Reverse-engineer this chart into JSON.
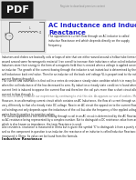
{
  "title": "AC Inductance and Inductive\nReactance",
  "pdf_label": "PDF",
  "bg_color": "#ffffff",
  "header_bg": "#d8d8d8",
  "pdf_box_color": "#1a1a1a",
  "pdf_text_color": "#ffffff",
  "title_color": "#2222cc",
  "body_text_color": "#222222",
  "small_text_color": "#666666",
  "header_line_color": "#bbbbbb",
  "circuit_bg": "#e8e8e8",
  "page_label": "Register to download premium content",
  "subtitle_text": "The opposition to current flow through an AC inductor is called\ninductive Reactance and which depends directly on the supply\nfrequency.",
  "body_paragraphs": [
    "Inductors and chokes are basically coils or loops of wire that are either wound around a hollow tube former (air cored) or wound around some ferromagnetic material (iron cored) to increase their inductance value called inductance.",
    "Inductors store their energy in the form of a magnetic field that is created when a voltage is applied across the terminals of an inductor. The growth of the current flowing through the inductor is not instant but is determined by the inductors own self-inductance back emf value. Then for an inductor coil the back emf voltage VL is proportional to the rate of change of the current flowing through it.",
    "The current and inductance is that coil in a series dc resistance steady state condition which is in many live line converters when the coil inductance of the has decreased to zero. By induction a steady state condition is found where such an over-current limit is induced to oppose the current flow and therefore the coil puts more than a short circuit allowing maximum current to flow through it.",
    "You can certainly enhance our experience by continuing to visit this site. As appears our use of cookies. More info.",
    "However, in an alternating current circuit which contains an AC Inductance, the flow of current through an inductor behaves very differently to that of a steady state DC voltage. Now in an AC circuit the opposition to the current flowing through the coil windings not only depends upon the inductance of the coil but also the frequency of the applied voltage waveform as it varies from its positive to negative values.",
    "The actual opposition to the current flowing through a coil in an AC circuit is determined by the AC Reactance of the coil and as AC resistance being represented by a complex number. But to distinguish a DC resistance value from an AC resistance value which is also known as impedance, the term Reactance is used.",
    "Like resistance, reactance is measured in Ohms but is given the symbol 'X' to distinguish it from a purely resistive 'R' value and as the component in question is an inductor, the reactance of an inductor is called Inductive Reactance, (XL) and is measured in Ohms. Its value can be found from the formula:",
    "Inductive Reactance"
  ],
  "para_fontsizes": [
    2.0,
    2.0,
    2.0,
    2.0,
    2.0,
    2.0,
    2.0,
    2.8
  ],
  "para_bold": [
    false,
    false,
    false,
    false,
    false,
    false,
    false,
    true
  ],
  "para_colors": [
    "#222222",
    "#222222",
    "#222222",
    "#777777",
    "#222222",
    "#222222",
    "#222222",
    "#111111"
  ]
}
